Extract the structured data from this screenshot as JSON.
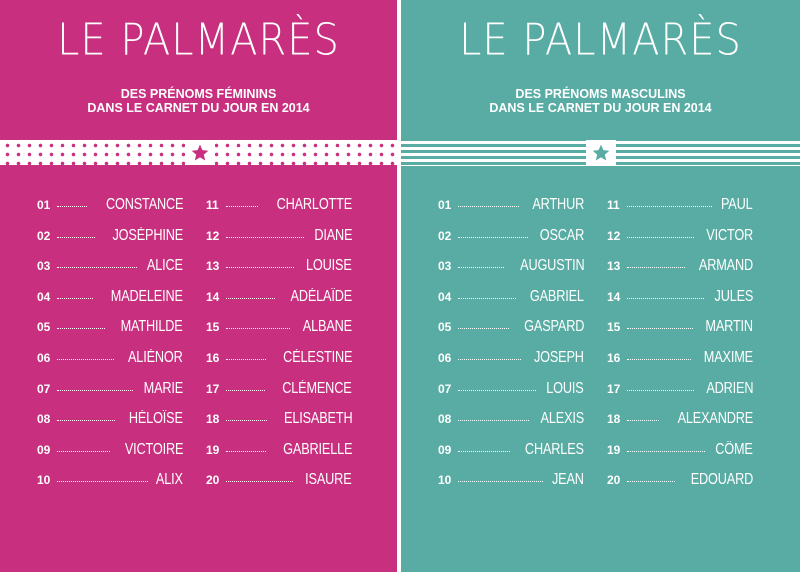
{
  "feminine": {
    "title": "LE PALMARÈS",
    "subtitle_line1": "DES PRÉNOMS FÉMININS",
    "subtitle_line2": "DANS LE CARNET DU JOUR EN 2014",
    "accent": "#c8307f",
    "icon": "star-icon",
    "rows": [
      {
        "num": "01",
        "name": "CONSTANCE"
      },
      {
        "num": "02",
        "name": "JOSÉPHINE"
      },
      {
        "num": "03",
        "name": "ALICE"
      },
      {
        "num": "04",
        "name": "MADELEINE"
      },
      {
        "num": "05",
        "name": "MATHILDE"
      },
      {
        "num": "06",
        "name": "ALIÉNOR"
      },
      {
        "num": "07",
        "name": "MARIE"
      },
      {
        "num": "08",
        "name": "HÉLOÏSE"
      },
      {
        "num": "09",
        "name": "VICTOIRE"
      },
      {
        "num": "10",
        "name": "ALIX"
      },
      {
        "num": "11",
        "name": "CHARLOTTE"
      },
      {
        "num": "12",
        "name": "DIANE"
      },
      {
        "num": "13",
        "name": "LOUISE"
      },
      {
        "num": "14",
        "name": "ADÉLAÏDE"
      },
      {
        "num": "15",
        "name": "ALBANE"
      },
      {
        "num": "16",
        "name": "CÉLESTINE"
      },
      {
        "num": "17",
        "name": "CLÉMENCE"
      },
      {
        "num": "18",
        "name": "ELISABETH"
      },
      {
        "num": "19",
        "name": "GABRIELLE"
      },
      {
        "num": "20",
        "name": "ISAURE"
      }
    ]
  },
  "masculine": {
    "title": "LE PALMARÈS",
    "subtitle_line1": "DES PRÉNOMS MASCULINS",
    "subtitle_line2": "DANS LE CARNET DU JOUR EN 2014",
    "accent": "#58aca3",
    "icon": "star-icon",
    "rows": [
      {
        "num": "01",
        "name": "ARTHUR"
      },
      {
        "num": "02",
        "name": "OSCAR"
      },
      {
        "num": "03",
        "name": "AUGUSTIN"
      },
      {
        "num": "04",
        "name": "GABRIEL"
      },
      {
        "num": "05",
        "name": "GASPARD"
      },
      {
        "num": "06",
        "name": "JOSEPH"
      },
      {
        "num": "07",
        "name": "LOUIS"
      },
      {
        "num": "08",
        "name": "ALEXIS"
      },
      {
        "num": "09",
        "name": "CHARLES"
      },
      {
        "num": "10",
        "name": "JEAN"
      },
      {
        "num": "11",
        "name": "PAUL"
      },
      {
        "num": "12",
        "name": "VICTOR"
      },
      {
        "num": "13",
        "name": "ARMAND"
      },
      {
        "num": "14",
        "name": "JULES"
      },
      {
        "num": "15",
        "name": "MARTIN"
      },
      {
        "num": "16",
        "name": "MAXIME"
      },
      {
        "num": "17",
        "name": "ADRIEN"
      },
      {
        "num": "18",
        "name": "ALEXANDRE"
      },
      {
        "num": "19",
        "name": "CÔME"
      },
      {
        "num": "20",
        "name": "EDOUARD"
      }
    ]
  }
}
